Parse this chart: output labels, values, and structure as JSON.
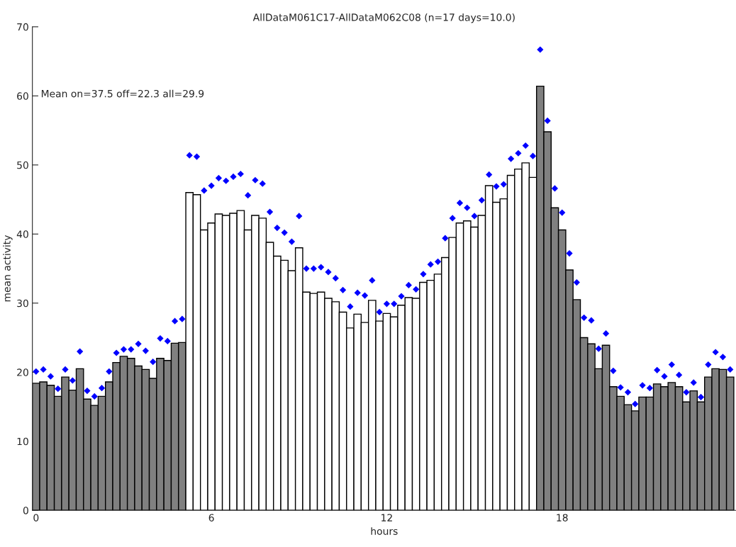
{
  "chart_data": {
    "type": "bar",
    "title": "AllDataM061C17-AllDataM062C08 (n=17 days=10.0)",
    "xlabel": "hours",
    "ylabel": "mean activity",
    "annotations": [
      "Mean on=37.5 off=22.3 all=29.9"
    ],
    "x": [
      0,
      0.25,
      0.5,
      0.75,
      1,
      1.25,
      1.5,
      1.75,
      2,
      2.25,
      2.5,
      2.75,
      3,
      3.25,
      3.5,
      3.75,
      4,
      4.25,
      4.5,
      4.75,
      5,
      5.25,
      5.5,
      5.75,
      6,
      6.25,
      6.5,
      6.75,
      7,
      7.25,
      7.5,
      7.75,
      8,
      8.25,
      8.5,
      8.75,
      9,
      9.25,
      9.5,
      9.75,
      10,
      10.25,
      10.5,
      10.75,
      11,
      11.25,
      11.5,
      11.75,
      12,
      12.25,
      12.5,
      12.75,
      13,
      13.25,
      13.5,
      13.75,
      14,
      14.25,
      14.5,
      14.75,
      15,
      15.25,
      15.5,
      15.75,
      16,
      16.25,
      16.5,
      16.75,
      17,
      17.25,
      17.5,
      17.75,
      18,
      18.25,
      18.5,
      18.75,
      19,
      19.25,
      19.5,
      19.75,
      20,
      20.25,
      20.5,
      20.75,
      21,
      21.25,
      21.5,
      21.75,
      22,
      22.25,
      22.5,
      22.75,
      23,
      23.25,
      23.5,
      23.75
    ],
    "series": [
      {
        "values": [
          18.4,
          18.6,
          18.1,
          16.5,
          19.3,
          17.4,
          20.5,
          16.1,
          15.2,
          16.5,
          18.6,
          21.4,
          22.3,
          22.0,
          20.9,
          20.4,
          19.1,
          22.0,
          21.7,
          24.2,
          24.3,
          46.0,
          45.7,
          40.6,
          41.6,
          42.9,
          42.7,
          43.0,
          43.4,
          40.6,
          42.7,
          42.3,
          38.8,
          36.8,
          36.2,
          34.7,
          38.0,
          31.6,
          31.4,
          31.6,
          30.7,
          30.2,
          28.7,
          26.4,
          28.4,
          27.2,
          30.4,
          27.4,
          28.5,
          28.0,
          29.7,
          30.8,
          30.7,
          33.0,
          33.3,
          34.2,
          36.6,
          39.5,
          41.6,
          41.9,
          41.0,
          42.7,
          47.0,
          44.6,
          45.1,
          48.5,
          49.4,
          50.3,
          48.2,
          61.4,
          54.8,
          43.8,
          40.6,
          34.8,
          30.5,
          25.0,
          24.1,
          20.5,
          23.9,
          17.9,
          16.5,
          15.3,
          14.4,
          16.4,
          16.4,
          18.3,
          17.9,
          18.5,
          17.9,
          15.7,
          17.3,
          15.7,
          19.3,
          20.5,
          20.4,
          19.3
        ],
        "colors": [
          "#808080",
          "#808080",
          "#808080",
          "#808080",
          "#808080",
          "#808080",
          "#808080",
          "#808080",
          "#808080",
          "#808080",
          "#808080",
          "#808080",
          "#808080",
          "#808080",
          "#808080",
          "#808080",
          "#808080",
          "#808080",
          "#808080",
          "#808080",
          "#808080",
          "#ffffff",
          "#ffffff",
          "#ffffff",
          "#ffffff",
          "#ffffff",
          "#ffffff",
          "#ffffff",
          "#ffffff",
          "#ffffff",
          "#ffffff",
          "#ffffff",
          "#ffffff",
          "#ffffff",
          "#ffffff",
          "#ffffff",
          "#ffffff",
          "#ffffff",
          "#ffffff",
          "#ffffff",
          "#ffffff",
          "#ffffff",
          "#ffffff",
          "#ffffff",
          "#ffffff",
          "#ffffff",
          "#ffffff",
          "#ffffff",
          "#ffffff",
          "#ffffff",
          "#ffffff",
          "#ffffff",
          "#ffffff",
          "#ffffff",
          "#ffffff",
          "#ffffff",
          "#ffffff",
          "#ffffff",
          "#ffffff",
          "#ffffff",
          "#ffffff",
          "#ffffff",
          "#ffffff",
          "#ffffff",
          "#ffffff",
          "#ffffff",
          "#ffffff",
          "#ffffff",
          "#ffffff",
          "#808080",
          "#808080",
          "#808080",
          "#808080",
          "#808080",
          "#808080",
          "#808080",
          "#808080",
          "#808080",
          "#808080",
          "#808080",
          "#808080",
          "#808080",
          "#808080",
          "#808080",
          "#808080",
          "#808080",
          "#808080",
          "#808080",
          "#808080",
          "#808080",
          "#808080",
          "#808080",
          "#808080",
          "#808080",
          "#808080",
          "#808080"
        ]
      },
      {
        "type": "scatter",
        "color": "#0000ff",
        "marker": "diamond",
        "values": [
          20.1,
          20.4,
          19.4,
          17.6,
          20.4,
          18.8,
          23.0,
          17.3,
          16.5,
          17.7,
          20.1,
          22.8,
          23.3,
          23.3,
          24.1,
          23.1,
          21.5,
          24.9,
          24.5,
          27.4,
          27.7,
          51.4,
          51.2,
          46.3,
          47.0,
          48.1,
          47.7,
          48.3,
          48.7,
          45.6,
          47.8,
          47.3,
          43.2,
          40.9,
          40.2,
          38.9,
          42.6,
          35.0,
          35.0,
          35.2,
          34.5,
          33.6,
          31.9,
          29.5,
          31.5,
          31.1,
          33.3,
          28.7,
          29.9,
          29.9,
          31.0,
          32.6,
          32.0,
          34.2,
          35.6,
          36.0,
          39.4,
          42.3,
          44.5,
          43.8,
          42.6,
          44.9,
          48.6,
          46.9,
          47.2,
          50.9,
          51.7,
          52.8,
          51.3,
          66.7,
          56.4,
          46.6,
          43.1,
          37.2,
          33.0,
          27.9,
          27.5,
          23.4,
          25.6,
          20.2,
          17.8,
          17.1,
          15.4,
          18.1,
          17.7,
          20.3,
          19.4,
          21.1,
          19.6,
          17.1,
          18.5,
          16.4,
          21.1,
          22.9,
          22.2,
          20.4
        ]
      }
    ],
    "xlim": [
      -0.125,
      23.95
    ],
    "xticks": [
      0,
      6,
      12,
      18
    ],
    "ylim": [
      0,
      70
    ],
    "yticks": [
      0,
      10,
      20,
      30,
      40,
      50,
      60,
      70
    ]
  }
}
